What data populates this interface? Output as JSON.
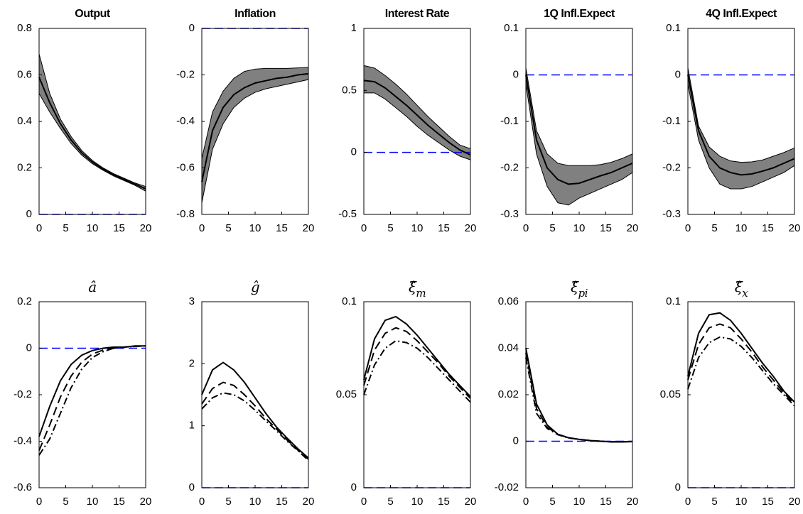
{
  "chart_data": [
    {
      "type": "band-line",
      "title": "Output",
      "x": [
        0,
        2,
        4,
        6,
        8,
        10,
        12,
        14,
        16,
        18,
        20
      ],
      "xlim": [
        0,
        20
      ],
      "xticks": [
        0,
        5,
        10,
        15,
        20
      ],
      "ylim": [
        0,
        0.8
      ],
      "yticks": [
        0,
        0.2,
        0.4,
        0.6,
        0.8
      ],
      "band": {
        "color": "#808080",
        "upper": [
          0.69,
          0.52,
          0.41,
          0.335,
          0.275,
          0.232,
          0.2,
          0.175,
          0.155,
          0.135,
          0.12
        ],
        "lower": [
          0.52,
          0.44,
          0.37,
          0.305,
          0.255,
          0.218,
          0.19,
          0.165,
          0.145,
          0.125,
          0.1
        ]
      },
      "series": [
        {
          "color": "#000000",
          "dash": "solid",
          "values": [
            0.59,
            0.48,
            0.39,
            0.32,
            0.265,
            0.225,
            0.195,
            0.17,
            0.15,
            0.13,
            0.11
          ]
        }
      ],
      "reference_line": {
        "value": 0,
        "color": "#0000ff",
        "dash": "dashed"
      }
    },
    {
      "type": "band-line",
      "title": "Inflation",
      "x": [
        0,
        2,
        4,
        6,
        8,
        10,
        12,
        14,
        16,
        18,
        20
      ],
      "xlim": [
        0,
        20
      ],
      "xticks": [
        0,
        5,
        10,
        15,
        20
      ],
      "ylim": [
        -0.8,
        0
      ],
      "yticks": [
        -0.8,
        -0.6,
        -0.4,
        -0.2,
        0
      ],
      "band": {
        "color": "#808080",
        "upper": [
          -0.56,
          -0.36,
          -0.27,
          -0.215,
          -0.185,
          -0.175,
          -0.172,
          -0.172,
          -0.172,
          -0.17,
          -0.168
        ],
        "lower": [
          -0.75,
          -0.52,
          -0.41,
          -0.34,
          -0.3,
          -0.275,
          -0.26,
          -0.25,
          -0.24,
          -0.23,
          -0.22
        ]
      },
      "series": [
        {
          "color": "#000000",
          "dash": "solid",
          "values": [
            -0.66,
            -0.44,
            -0.34,
            -0.285,
            -0.255,
            -0.235,
            -0.225,
            -0.215,
            -0.21,
            -0.2,
            -0.195
          ]
        }
      ],
      "reference_line": {
        "value": 0,
        "color": "#0000ff",
        "dash": "dashed"
      }
    },
    {
      "type": "band-line",
      "title": "Interest Rate",
      "x": [
        0,
        2,
        4,
        6,
        8,
        10,
        12,
        14,
        16,
        18,
        20
      ],
      "xlim": [
        0,
        20
      ],
      "xticks": [
        0,
        5,
        10,
        15,
        20
      ],
      "ylim": [
        -0.5,
        1
      ],
      "yticks": [
        -0.5,
        0,
        0.5,
        1
      ],
      "band": {
        "color": "#808080",
        "upper": [
          0.7,
          0.68,
          0.62,
          0.55,
          0.47,
          0.38,
          0.29,
          0.21,
          0.13,
          0.06,
          0.03
        ],
        "lower": [
          0.48,
          0.48,
          0.43,
          0.36,
          0.29,
          0.21,
          0.14,
          0.08,
          0.02,
          -0.03,
          -0.06
        ]
      },
      "series": [
        {
          "color": "#000000",
          "dash": "solid",
          "values": [
            0.58,
            0.57,
            0.52,
            0.45,
            0.38,
            0.3,
            0.22,
            0.15,
            0.08,
            0.02,
            -0.02
          ]
        }
      ],
      "reference_line": {
        "value": 0,
        "color": "#0000ff",
        "dash": "dashed"
      }
    },
    {
      "type": "band-line",
      "title": "1Q Infl.Expect",
      "x": [
        0,
        2,
        4,
        6,
        8,
        10,
        12,
        14,
        16,
        18,
        20
      ],
      "xlim": [
        0,
        20
      ],
      "xticks": [
        0,
        5,
        10,
        15,
        20
      ],
      "ylim": [
        -0.3,
        0.1
      ],
      "yticks": [
        -0.3,
        -0.2,
        -0.1,
        0,
        0.1
      ],
      "band": {
        "color": "#808080",
        "upper": [
          0.015,
          -0.12,
          -0.17,
          -0.19,
          -0.195,
          -0.195,
          -0.195,
          -0.193,
          -0.188,
          -0.18,
          -0.17
        ],
        "lower": [
          -0.02,
          -0.17,
          -0.24,
          -0.275,
          -0.28,
          -0.265,
          -0.255,
          -0.245,
          -0.235,
          -0.225,
          -0.21
        ]
      },
      "series": [
        {
          "color": "#000000",
          "dash": "solid",
          "values": [
            0,
            -0.14,
            -0.2,
            -0.225,
            -0.235,
            -0.233,
            -0.225,
            -0.217,
            -0.21,
            -0.2,
            -0.19
          ]
        }
      ],
      "reference_line": {
        "value": 0,
        "color": "#0000ff",
        "dash": "dashed"
      }
    },
    {
      "type": "band-line",
      "title": "4Q Infl.Expect",
      "x": [
        0,
        2,
        4,
        6,
        8,
        10,
        12,
        14,
        16,
        18,
        20
      ],
      "xlim": [
        0,
        20
      ],
      "xticks": [
        0,
        5,
        10,
        15,
        20
      ],
      "ylim": [
        -0.3,
        0.1
      ],
      "yticks": [
        -0.3,
        -0.2,
        -0.1,
        0,
        0.1
      ],
      "band": {
        "color": "#808080",
        "upper": [
          0.015,
          -0.11,
          -0.155,
          -0.175,
          -0.185,
          -0.188,
          -0.187,
          -0.183,
          -0.175,
          -0.167,
          -0.157
        ],
        "lower": [
          -0.02,
          -0.14,
          -0.2,
          -0.235,
          -0.245,
          -0.245,
          -0.24,
          -0.23,
          -0.22,
          -0.21,
          -0.195
        ]
      },
      "series": [
        {
          "color": "#000000",
          "dash": "solid",
          "values": [
            0,
            -0.12,
            -0.175,
            -0.2,
            -0.21,
            -0.215,
            -0.213,
            -0.207,
            -0.2,
            -0.19,
            -0.18
          ]
        }
      ],
      "reference_line": {
        "value": 0,
        "color": "#0000ff",
        "dash": "dashed"
      }
    },
    {
      "type": "line",
      "title": "â",
      "x": [
        0,
        2,
        4,
        6,
        8,
        10,
        12,
        14,
        16,
        18,
        20
      ],
      "xlim": [
        0,
        20
      ],
      "xticks": [
        0,
        5,
        10,
        15,
        20
      ],
      "ylim": [
        -0.6,
        0.2
      ],
      "yticks": [
        -0.6,
        -0.4,
        -0.2,
        0,
        0.2
      ],
      "series": [
        {
          "color": "#000000",
          "dash": "solid",
          "values": [
            -0.38,
            -0.25,
            -0.14,
            -0.07,
            -0.03,
            -0.01,
            0,
            0.005,
            0.005,
            0.01,
            0.01
          ]
        },
        {
          "color": "#000000",
          "dash": "dashed",
          "values": [
            -0.44,
            -0.33,
            -0.21,
            -0.12,
            -0.06,
            -0.025,
            -0.008,
            0,
            0.005,
            0.008,
            0.01
          ]
        },
        {
          "color": "#000000",
          "dash": "dashdot",
          "values": [
            -0.46,
            -0.39,
            -0.28,
            -0.17,
            -0.09,
            -0.04,
            -0.015,
            0,
            0.005,
            0.008,
            0.01
          ]
        }
      ],
      "reference_line": {
        "value": 0,
        "color": "#0000ff",
        "dash": "dashed"
      }
    },
    {
      "type": "line",
      "title": "ĝ",
      "x": [
        0,
        2,
        4,
        6,
        8,
        10,
        12,
        14,
        16,
        18,
        20
      ],
      "xlim": [
        0,
        20
      ],
      "xticks": [
        0,
        5,
        10,
        15,
        20
      ],
      "ylim": [
        0,
        3
      ],
      "yticks": [
        0,
        1,
        2,
        3
      ],
      "series": [
        {
          "color": "#000000",
          "dash": "solid",
          "values": [
            1.5,
            1.9,
            2.02,
            1.9,
            1.7,
            1.45,
            1.2,
            0.98,
            0.8,
            0.63,
            0.48
          ]
        },
        {
          "color": "#000000",
          "dash": "dashed",
          "values": [
            1.35,
            1.6,
            1.7,
            1.65,
            1.5,
            1.32,
            1.12,
            0.95,
            0.77,
            0.61,
            0.46
          ]
        },
        {
          "color": "#000000",
          "dash": "dashdot",
          "values": [
            1.27,
            1.45,
            1.53,
            1.5,
            1.4,
            1.25,
            1.08,
            0.92,
            0.75,
            0.6,
            0.44
          ]
        }
      ],
      "reference_line": {
        "value": 0,
        "color": "#0000ff",
        "dash": "dashed"
      }
    },
    {
      "type": "line",
      "title": "ξ̂",
      "title_subscript": "m",
      "x": [
        0,
        2,
        4,
        6,
        8,
        10,
        12,
        14,
        16,
        18,
        20
      ],
      "xlim": [
        0,
        20
      ],
      "xticks": [
        0,
        5,
        10,
        15,
        20
      ],
      "ylim": [
        0,
        0.1
      ],
      "yticks": [
        0,
        0.05,
        0.1
      ],
      "series": [
        {
          "color": "#000000",
          "dash": "solid",
          "values": [
            0.058,
            0.08,
            0.09,
            0.092,
            0.088,
            0.082,
            0.075,
            0.068,
            0.061,
            0.055,
            0.049
          ]
        },
        {
          "color": "#000000",
          "dash": "dashed",
          "values": [
            0.055,
            0.074,
            0.083,
            0.086,
            0.084,
            0.079,
            0.073,
            0.067,
            0.06,
            0.054,
            0.048
          ]
        },
        {
          "color": "#000000",
          "dash": "dashdot",
          "values": [
            0.05,
            0.066,
            0.075,
            0.079,
            0.078,
            0.075,
            0.07,
            0.064,
            0.058,
            0.052,
            0.046
          ]
        }
      ],
      "reference_line": {
        "value": 0,
        "color": "#0000ff",
        "dash": "dashed"
      }
    },
    {
      "type": "line",
      "title": "ξ̂",
      "title_subscript": "pi",
      "x": [
        0,
        2,
        4,
        6,
        8,
        10,
        12,
        14,
        16,
        18,
        20
      ],
      "xlim": [
        0,
        20
      ],
      "xticks": [
        0,
        5,
        10,
        15,
        20
      ],
      "ylim": [
        -0.02,
        0.06
      ],
      "yticks": [
        -0.02,
        0,
        0.02,
        0.04,
        0.06
      ],
      "series": [
        {
          "color": "#000000",
          "dash": "solid",
          "values": [
            0.04,
            0.016,
            0.007,
            0.003,
            0.0015,
            0.0008,
            0.0003,
            0,
            -0.0003,
            -0.0003,
            -0.0002
          ]
        },
        {
          "color": "#000000",
          "dash": "dashed",
          "values": [
            0.038,
            0.014,
            0.006,
            0.003,
            0.0015,
            0.0008,
            0.0003,
            0,
            -0.0002,
            -0.0002,
            -0.0001
          ]
        },
        {
          "color": "#000000",
          "dash": "dashdot",
          "values": [
            0.036,
            0.012,
            0.0055,
            0.0028,
            0.0014,
            0.0008,
            0.0003,
            0,
            -0.0002,
            -0.0002,
            -0.0001
          ]
        }
      ],
      "reference_line": {
        "value": 0,
        "color": "#0000ff",
        "dash": "dashed"
      }
    },
    {
      "type": "line",
      "title": "ξ̂",
      "title_subscript": "x",
      "x": [
        0,
        2,
        4,
        6,
        8,
        10,
        12,
        14,
        16,
        18,
        20
      ],
      "xlim": [
        0,
        20
      ],
      "xticks": [
        0,
        5,
        10,
        15,
        20
      ],
      "ylim": [
        0,
        0.1
      ],
      "yticks": [
        0,
        0.05,
        0.1
      ],
      "series": [
        {
          "color": "#000000",
          "dash": "solid",
          "values": [
            0.06,
            0.083,
            0.093,
            0.094,
            0.09,
            0.083,
            0.075,
            0.067,
            0.06,
            0.052,
            0.046
          ]
        },
        {
          "color": "#000000",
          "dash": "dashed",
          "values": [
            0.058,
            0.077,
            0.086,
            0.088,
            0.086,
            0.08,
            0.073,
            0.065,
            0.058,
            0.051,
            0.045
          ]
        },
        {
          "color": "#000000",
          "dash": "dashdot",
          "values": [
            0.053,
            0.07,
            0.078,
            0.081,
            0.08,
            0.076,
            0.07,
            0.063,
            0.056,
            0.05,
            0.044
          ]
        }
      ],
      "reference_line": {
        "value": 0,
        "color": "#0000ff",
        "dash": "dashed"
      }
    }
  ]
}
